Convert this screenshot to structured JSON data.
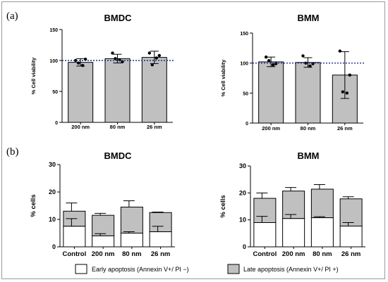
{
  "panel_labels": [
    "(a)",
    "(b)"
  ],
  "colors": {
    "bar_fill": "#c0c0c0",
    "early_fill": "#ffffff",
    "stroke": "#000000",
    "reference_line": "#1f2a8a"
  },
  "legend": {
    "early": "Early apoptosis (Annexin V+/ PI −)",
    "late": "Late apoptosis (Annexin V+/ PI +)"
  },
  "chart_data": [
    {
      "id": "a-bmdc",
      "type": "bar",
      "title": "BMDC",
      "ylabel": "% Cell viability",
      "categories": [
        "200 nm",
        "80 nm",
        "26 nm"
      ],
      "values": [
        97,
        103,
        105
      ],
      "error": [
        6,
        7,
        10
      ],
      "points": [
        [
          100,
          96,
          92,
          102
        ],
        [
          112,
          103,
          101,
          98
        ],
        [
          112,
          93,
          104,
          108
        ]
      ],
      "reference_line": 100,
      "ylim": [
        0,
        150
      ],
      "yticks": [
        0,
        50,
        100,
        150
      ]
    },
    {
      "id": "a-bmm",
      "type": "bar",
      "title": "BMM",
      "ylabel": "% Cell viability",
      "categories": [
        "200 nm",
        "80 nm",
        "26 nm"
      ],
      "values": [
        102,
        101,
        80
      ],
      "error": [
        8,
        8,
        39
      ],
      "points": [
        [
          110,
          104,
          97,
          99
        ],
        [
          112,
          100,
          95,
          99
        ],
        [
          120,
          52,
          50,
          80
        ]
      ],
      "reference_line": 100,
      "ylim": [
        0,
        150
      ],
      "yticks": [
        0,
        50,
        100,
        150
      ]
    },
    {
      "id": "b-bmdc",
      "type": "bar",
      "stacked": true,
      "title": "BMDC",
      "ylabel": "% cells",
      "categories": [
        "Control",
        "200 nm",
        "80 nm",
        "26 nm"
      ],
      "series": [
        {
          "name": "Early apoptosis (Annexin V+/ PI −)",
          "values": [
            7.5,
            4.0,
            5.0,
            5.5
          ],
          "error": [
            2.8,
            0.8,
            0.5,
            2.0
          ]
        },
        {
          "name": "Late apoptosis (Annexin V+/ PI +)",
          "values": [
            5.5,
            7.5,
            9.5,
            7.0
          ],
          "error": [
            3.0,
            0.7,
            2.3,
            0.2
          ]
        }
      ],
      "ylim": [
        0,
        30
      ],
      "yticks": [
        0,
        10,
        20,
        30
      ]
    },
    {
      "id": "b-bmm",
      "type": "bar",
      "stacked": true,
      "title": "BMM",
      "ylabel": "% cells",
      "categories": [
        "Control",
        "200 nm",
        "80 nm",
        "26 nm"
      ],
      "series": [
        {
          "name": "Early apoptosis (Annexin V+/ PI −)",
          "values": [
            9.0,
            10.5,
            10.8,
            7.7
          ],
          "error": [
            2.3,
            1.5,
            0.4,
            1.3
          ]
        },
        {
          "name": "Late apoptosis (Annexin V+/ PI +)",
          "values": [
            9.0,
            10.2,
            10.6,
            10.1
          ],
          "error": [
            2.0,
            1.3,
            1.7,
            0.8
          ]
        }
      ],
      "ylim": [
        0,
        30
      ],
      "yticks": [
        0,
        10,
        20,
        30
      ]
    }
  ]
}
